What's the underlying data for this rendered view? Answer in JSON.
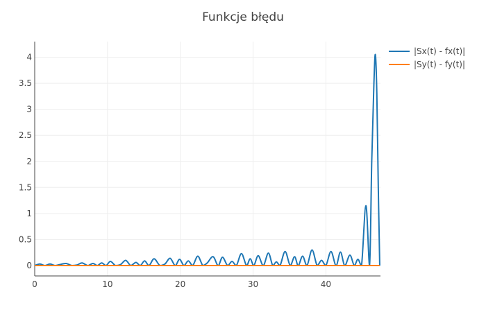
{
  "chart_data": {
    "type": "line",
    "title": "Funkcje błędu",
    "xlabel": "",
    "ylabel": "",
    "xlim": [
      0,
      47.5
    ],
    "ylim": [
      -0.2,
      4.3
    ],
    "x_ticks": [
      0,
      10,
      20,
      30,
      40
    ],
    "y_ticks": [
      0,
      0.5,
      1,
      1.5,
      2,
      2.5,
      3,
      3.5,
      4
    ],
    "grid": true,
    "legend_position": "top-right",
    "series": [
      {
        "name": "|Sx(t) - fx(t)|",
        "color": "#1f77b4",
        "points": [
          [
            0,
            0.0
          ],
          [
            0.7,
            0.03
          ],
          [
            1.4,
            0.0
          ],
          [
            2.1,
            0.03
          ],
          [
            2.8,
            0.0
          ],
          [
            3.5,
            0.02
          ],
          [
            4.3,
            0.04
          ],
          [
            5.1,
            0.0
          ],
          [
            5.8,
            0.01
          ],
          [
            6.5,
            0.05
          ],
          [
            7.3,
            0.0
          ],
          [
            8.0,
            0.04
          ],
          [
            8.6,
            0.0
          ],
          [
            9.2,
            0.05
          ],
          [
            9.8,
            0.0
          ],
          [
            10.4,
            0.08
          ],
          [
            11.1,
            0.0
          ],
          [
            11.8,
            0.02
          ],
          [
            12.5,
            0.1
          ],
          [
            13.2,
            0.0
          ],
          [
            13.9,
            0.06
          ],
          [
            14.5,
            0.0
          ],
          [
            15.1,
            0.09
          ],
          [
            15.7,
            0.0
          ],
          [
            16.4,
            0.13
          ],
          [
            17.2,
            0.0
          ],
          [
            17.9,
            0.03
          ],
          [
            18.6,
            0.14
          ],
          [
            19.3,
            0.0
          ],
          [
            19.9,
            0.12
          ],
          [
            20.5,
            0.0
          ],
          [
            21.1,
            0.09
          ],
          [
            21.7,
            0.0
          ],
          [
            22.4,
            0.18
          ],
          [
            23.1,
            0.0
          ],
          [
            23.7,
            0.05
          ],
          [
            24.5,
            0.17
          ],
          [
            25.2,
            0.0
          ],
          [
            25.8,
            0.16
          ],
          [
            26.5,
            0.0
          ],
          [
            27.1,
            0.08
          ],
          [
            27.7,
            0.0
          ],
          [
            28.4,
            0.23
          ],
          [
            29.1,
            0.0
          ],
          [
            29.6,
            0.13
          ],
          [
            30.1,
            0.0
          ],
          [
            30.7,
            0.19
          ],
          [
            31.4,
            0.0
          ],
          [
            32.1,
            0.24
          ],
          [
            32.7,
            0.0
          ],
          [
            33.2,
            0.07
          ],
          [
            33.7,
            0.0
          ],
          [
            34.4,
            0.27
          ],
          [
            35.1,
            0.0
          ],
          [
            35.7,
            0.17
          ],
          [
            36.2,
            0.0
          ],
          [
            36.8,
            0.18
          ],
          [
            37.4,
            0.0
          ],
          [
            38.1,
            0.3
          ],
          [
            38.8,
            0.0
          ],
          [
            39.4,
            0.1
          ],
          [
            40.0,
            0.0
          ],
          [
            40.7,
            0.27
          ],
          [
            41.4,
            0.0
          ],
          [
            42.0,
            0.26
          ],
          [
            42.6,
            0.0
          ],
          [
            43.3,
            0.2
          ],
          [
            43.9,
            0.0
          ],
          [
            44.4,
            0.12
          ],
          [
            44.9,
            0.0
          ],
          [
            45.5,
            1.15
          ],
          [
            46.0,
            0.0
          ],
          [
            46.3,
            2.0
          ],
          [
            46.6,
            3.5
          ],
          [
            46.8,
            4.05
          ],
          [
            47.0,
            3.3
          ],
          [
            47.2,
            1.5
          ],
          [
            47.4,
            0.0
          ]
        ]
      },
      {
        "name": "|Sy(t) - fy(t)|",
        "color": "#ff7f0e",
        "points": [
          [
            0,
            0.0
          ],
          [
            47.4,
            0.0
          ]
        ]
      }
    ]
  }
}
